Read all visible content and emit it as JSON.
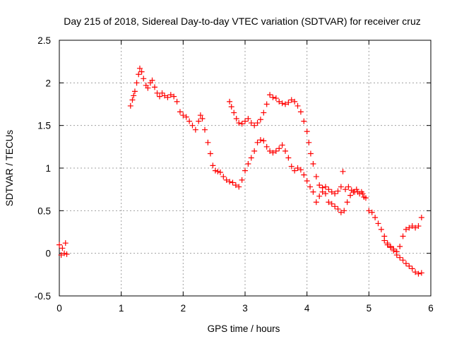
{
  "chart_data": {
    "type": "scatter",
    "title": "Day 215 of 2018, Sidereal Day-to-day VTEC variation (SDTVAR) for receiver cruz",
    "xlabel": "GPS time / hours",
    "ylabel": "SDTVAR / TECUs",
    "xlim": [
      0,
      6
    ],
    "ylim": [
      -0.5,
      2.5
    ],
    "x_ticks": [
      0,
      1,
      2,
      3,
      4,
      5,
      6
    ],
    "y_ticks": [
      -0.5,
      0,
      0.5,
      1,
      1.5,
      2,
      2.5
    ],
    "x_tick_labels": [
      "0",
      "1",
      "2",
      "3",
      "4",
      "5",
      "6"
    ],
    "y_tick_labels": [
      "-0.5",
      "0",
      "0.5",
      "1",
      "1.5",
      "2",
      "2.5"
    ],
    "grid": true,
    "marker": "+",
    "color": "#ff0000",
    "series": [
      {
        "name": "SDTVAR",
        "points": [
          [
            0.0,
            0.1
          ],
          [
            0.03,
            -0.02
          ],
          [
            0.05,
            0.06
          ],
          [
            0.08,
            0.0
          ],
          [
            0.1,
            0.12
          ],
          [
            0.12,
            -0.01
          ],
          [
            1.15,
            1.73
          ],
          [
            1.18,
            1.8
          ],
          [
            1.2,
            1.85
          ],
          [
            1.22,
            1.9
          ],
          [
            1.25,
            2.0
          ],
          [
            1.28,
            2.1
          ],
          [
            1.3,
            2.17
          ],
          [
            1.33,
            2.13
          ],
          [
            1.36,
            2.05
          ],
          [
            1.4,
            1.97
          ],
          [
            1.43,
            1.94
          ],
          [
            1.47,
            2.0
          ],
          [
            1.5,
            2.03
          ],
          [
            1.54,
            1.95
          ],
          [
            1.58,
            1.88
          ],
          [
            1.62,
            1.84
          ],
          [
            1.66,
            1.88
          ],
          [
            1.7,
            1.85
          ],
          [
            1.75,
            1.83
          ],
          [
            1.8,
            1.86
          ],
          [
            1.85,
            1.84
          ],
          [
            1.9,
            1.78
          ],
          [
            1.95,
            1.66
          ],
          [
            2.0,
            1.62
          ],
          [
            2.05,
            1.6
          ],
          [
            2.1,
            1.55
          ],
          [
            2.15,
            1.5
          ],
          [
            2.2,
            1.45
          ],
          [
            2.25,
            1.55
          ],
          [
            2.28,
            1.62
          ],
          [
            2.31,
            1.58
          ],
          [
            2.35,
            1.45
          ],
          [
            2.4,
            1.3
          ],
          [
            2.44,
            1.17
          ],
          [
            2.48,
            1.03
          ],
          [
            2.52,
            0.97
          ],
          [
            2.56,
            0.96
          ],
          [
            2.6,
            0.95
          ],
          [
            2.65,
            0.9
          ],
          [
            2.7,
            0.86
          ],
          [
            2.75,
            0.84
          ],
          [
            2.8,
            0.83
          ],
          [
            2.85,
            0.8
          ],
          [
            2.9,
            0.78
          ],
          [
            2.95,
            0.86
          ],
          [
            3.0,
            0.97
          ],
          [
            3.05,
            1.05
          ],
          [
            3.1,
            1.12
          ],
          [
            3.15,
            1.2
          ],
          [
            3.2,
            1.3
          ],
          [
            3.25,
            1.33
          ],
          [
            3.3,
            1.32
          ],
          [
            3.35,
            1.25
          ],
          [
            3.4,
            1.2
          ],
          [
            3.45,
            1.18
          ],
          [
            3.5,
            1.2
          ],
          [
            3.55,
            1.23
          ],
          [
            3.6,
            1.27
          ],
          [
            3.65,
            1.2
          ],
          [
            3.7,
            1.12
          ],
          [
            3.75,
            1.02
          ],
          [
            3.8,
            0.97
          ],
          [
            3.85,
            1.0
          ],
          [
            3.9,
            0.98
          ],
          [
            3.95,
            0.92
          ],
          [
            4.0,
            0.85
          ],
          [
            4.05,
            0.78
          ],
          [
            4.1,
            0.72
          ],
          [
            4.15,
            0.6
          ],
          [
            4.2,
            0.67
          ],
          [
            4.25,
            0.72
          ],
          [
            4.3,
            0.7
          ],
          [
            4.35,
            0.6
          ],
          [
            4.4,
            0.58
          ],
          [
            4.45,
            0.55
          ],
          [
            4.5,
            0.52
          ],
          [
            4.55,
            0.48
          ],
          [
            4.6,
            0.5
          ],
          [
            4.65,
            0.6
          ],
          [
            4.7,
            0.68
          ],
          [
            4.75,
            0.72
          ],
          [
            4.8,
            0.75
          ],
          [
            4.85,
            0.7
          ],
          [
            4.9,
            0.7
          ],
          [
            4.95,
            0.65
          ],
          [
            2.75,
            1.78
          ],
          [
            2.78,
            1.72
          ],
          [
            2.82,
            1.65
          ],
          [
            2.86,
            1.58
          ],
          [
            2.9,
            1.53
          ],
          [
            2.95,
            1.52
          ],
          [
            3.0,
            1.55
          ],
          [
            3.05,
            1.58
          ],
          [
            3.1,
            1.53
          ],
          [
            3.15,
            1.5
          ],
          [
            3.2,
            1.53
          ],
          [
            3.25,
            1.57
          ],
          [
            3.3,
            1.65
          ],
          [
            3.35,
            1.75
          ],
          [
            3.4,
            1.86
          ],
          [
            3.45,
            1.83
          ],
          [
            3.5,
            1.82
          ],
          [
            3.55,
            1.78
          ],
          [
            3.6,
            1.76
          ],
          [
            3.65,
            1.75
          ],
          [
            3.7,
            1.77
          ],
          [
            3.75,
            1.8
          ],
          [
            3.8,
            1.78
          ],
          [
            3.85,
            1.73
          ],
          [
            3.9,
            1.66
          ],
          [
            3.95,
            1.55
          ],
          [
            4.0,
            1.43
          ],
          [
            4.03,
            1.3
          ],
          [
            4.06,
            1.17
          ],
          [
            4.1,
            1.05
          ],
          [
            4.15,
            0.9
          ],
          [
            4.2,
            0.8
          ],
          [
            4.25,
            0.77
          ],
          [
            4.3,
            0.78
          ],
          [
            4.35,
            0.75
          ],
          [
            4.4,
            0.72
          ],
          [
            4.45,
            0.7
          ],
          [
            4.5,
            0.73
          ],
          [
            4.55,
            0.78
          ],
          [
            4.58,
            0.96
          ],
          [
            4.62,
            0.75
          ],
          [
            4.67,
            0.78
          ],
          [
            4.72,
            0.74
          ],
          [
            4.77,
            0.72
          ],
          [
            4.82,
            0.72
          ],
          [
            4.88,
            0.72
          ],
          [
            4.92,
            0.66
          ],
          [
            5.0,
            0.5
          ],
          [
            5.05,
            0.48
          ],
          [
            5.1,
            0.42
          ],
          [
            5.15,
            0.35
          ],
          [
            5.2,
            0.28
          ],
          [
            5.25,
            0.2
          ],
          [
            5.3,
            0.12
          ],
          [
            5.35,
            0.07
          ],
          [
            5.4,
            0.03
          ],
          [
            5.45,
            -0.02
          ],
          [
            5.5,
            -0.05
          ],
          [
            5.55,
            -0.08
          ],
          [
            5.6,
            -0.12
          ],
          [
            5.65,
            -0.15
          ],
          [
            5.7,
            -0.18
          ],
          [
            5.75,
            -0.22
          ],
          [
            5.8,
            -0.24
          ],
          [
            5.85,
            -0.23
          ],
          [
            5.25,
            0.15
          ],
          [
            5.3,
            0.1
          ],
          [
            5.35,
            0.08
          ],
          [
            5.4,
            0.05
          ],
          [
            5.45,
            0.02
          ],
          [
            5.5,
            0.08
          ],
          [
            5.55,
            0.2
          ],
          [
            5.6,
            0.28
          ],
          [
            5.65,
            0.3
          ],
          [
            5.7,
            0.32
          ],
          [
            5.75,
            0.3
          ],
          [
            5.8,
            0.32
          ],
          [
            5.85,
            0.42
          ]
        ]
      }
    ]
  }
}
